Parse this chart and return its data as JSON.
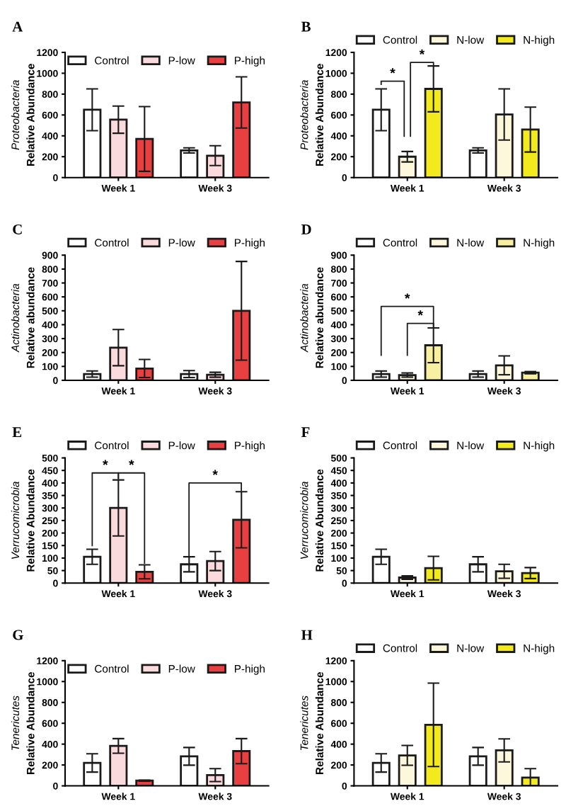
{
  "chart_data": [
    {
      "type": "bar",
      "title": "A",
      "ylabel": "Proteobacteria\nRelative Abundance",
      "categories": [
        "Week 1",
        "Week 3"
      ],
      "ylim": [
        0,
        1200
      ],
      "yticks": [
        0,
        200,
        400,
        600,
        800,
        1000,
        1200
      ],
      "legend": "top",
      "grid": false,
      "series": [
        {
          "name": "Control",
          "color": "#ffffff",
          "values": [
            650,
            260
          ],
          "errors": [
            200,
            25
          ]
        },
        {
          "name": "P-low",
          "color": "#fadadd",
          "values": [
            555,
            210
          ],
          "errors": [
            130,
            95
          ]
        },
        {
          "name": "P-high",
          "color": "#e84040",
          "values": [
            370,
            720
          ],
          "errors": [
            310,
            245
          ]
        }
      ]
    },
    {
      "type": "bar",
      "title": "B",
      "ylabel": "Proteobacteria\nRelative Abundance",
      "categories": [
        "Week 1",
        "Week 3"
      ],
      "ylim": [
        0,
        1200
      ],
      "yticks": [
        0,
        200,
        400,
        600,
        800,
        1000,
        1200
      ],
      "legend": "top",
      "grid": false,
      "annotations": [
        "*",
        "*"
      ],
      "series": [
        {
          "name": "Control",
          "color": "#ffffff",
          "values": [
            650,
            260
          ],
          "errors": [
            200,
            25
          ]
        },
        {
          "name": "N-low",
          "color": "#fdf8dc",
          "values": [
            200,
            605
          ],
          "errors": [
            50,
            245
          ]
        },
        {
          "name": "N-high",
          "color": "#f2ea1c",
          "values": [
            850,
            460
          ],
          "errors": [
            220,
            215
          ]
        }
      ]
    },
    {
      "type": "bar",
      "title": "C",
      "ylabel": "Actinobacteria\nRelative abundance",
      "categories": [
        "Week 1",
        "Week 3"
      ],
      "ylim": [
        0,
        900
      ],
      "yticks": [
        0,
        100,
        200,
        300,
        400,
        500,
        600,
        700,
        800,
        900
      ],
      "legend": "top",
      "grid": false,
      "series": [
        {
          "name": "Control",
          "color": "#ffffff",
          "values": [
            45,
            45
          ],
          "errors": [
            22,
            25
          ]
        },
        {
          "name": "P-low",
          "color": "#fadadd",
          "values": [
            235,
            40
          ],
          "errors": [
            130,
            18
          ]
        },
        {
          "name": "P-high",
          "color": "#e84040",
          "values": [
            85,
            500
          ],
          "errors": [
            65,
            355
          ]
        }
      ]
    },
    {
      "type": "bar",
      "title": "D",
      "ylabel": "Actinobacteria\nRelative abundance",
      "categories": [
        "Week 1",
        "Week 3"
      ],
      "ylim": [
        0,
        900
      ],
      "yticks": [
        0,
        100,
        200,
        300,
        400,
        500,
        600,
        700,
        800,
        900
      ],
      "legend": "top",
      "grid": false,
      "annotations": [
        "*",
        "*"
      ],
      "series": [
        {
          "name": "Control",
          "color": "#ffffff",
          "values": [
            45,
            45
          ],
          "errors": [
            22,
            22
          ]
        },
        {
          "name": "N-low",
          "color": "#fdf8dc",
          "values": [
            38,
            108
          ],
          "errors": [
            15,
            68
          ]
        },
        {
          "name": "N-high",
          "color": "#f7f0a0",
          "values": [
            252,
            55
          ],
          "errors": [
            125,
            8
          ]
        }
      ]
    },
    {
      "type": "bar",
      "title": "E",
      "ylabel": "Verrucomicrobia\nRelative Abundance",
      "categories": [
        "Week 1",
        "Week 3"
      ],
      "ylim": [
        0,
        500
      ],
      "yticks": [
        0,
        50,
        100,
        150,
        200,
        250,
        300,
        350,
        400,
        450,
        500
      ],
      "legend": "top",
      "grid": false,
      "annotations": [
        "*",
        "*",
        "*"
      ],
      "series": [
        {
          "name": "Control",
          "color": "#ffffff",
          "values": [
            105,
            75
          ],
          "errors": [
            30,
            30
          ]
        },
        {
          "name": "P-low",
          "color": "#fadadd",
          "values": [
            300,
            88
          ],
          "errors": [
            112,
            38
          ]
        },
        {
          "name": "P-high",
          "color": "#e84040",
          "values": [
            45,
            253
          ],
          "errors": [
            28,
            112
          ]
        }
      ]
    },
    {
      "type": "bar",
      "title": "F",
      "ylabel": "Verrucomicrobia\nRelative Abundance",
      "categories": [
        "Week 1",
        "Week 3"
      ],
      "ylim": [
        0,
        500
      ],
      "yticks": [
        0,
        50,
        100,
        150,
        200,
        250,
        300,
        350,
        400,
        450,
        500
      ],
      "legend": "top",
      "grid": false,
      "series": [
        {
          "name": "Control",
          "color": "#ffffff",
          "values": [
            105,
            75
          ],
          "errors": [
            30,
            30
          ]
        },
        {
          "name": "N-low",
          "color": "#fdf8dc",
          "values": [
            22,
            47
          ],
          "errors": [
            7,
            28
          ]
        },
        {
          "name": "N-high",
          "color": "#f2ea1c",
          "values": [
            60,
            40
          ],
          "errors": [
            47,
            22
          ]
        }
      ]
    },
    {
      "type": "bar",
      "title": "G",
      "ylabel": "Tenericutes\nRelative Abundance",
      "categories": [
        "Week 1",
        "Week 3"
      ],
      "ylim": [
        0,
        1200
      ],
      "yticks": [
        0,
        200,
        400,
        600,
        800,
        1000,
        1200
      ],
      "legend": "top",
      "grid": false,
      "series": [
        {
          "name": "Control",
          "color": "#ffffff",
          "values": [
            220,
            283
          ],
          "errors": [
            88,
            85
          ]
        },
        {
          "name": "P-low",
          "color": "#fadadd",
          "values": [
            383,
            103
          ],
          "errors": [
            70,
            62
          ]
        },
        {
          "name": "P-high",
          "color": "#e84040",
          "values": [
            50,
            333
          ],
          "errors": [
            5,
            120
          ]
        }
      ]
    },
    {
      "type": "bar",
      "title": "H",
      "ylabel": "Tenericutes\nRelative Abundance",
      "categories": [
        "Week 1",
        "Week 3"
      ],
      "ylim": [
        0,
        1200
      ],
      "yticks": [
        0,
        200,
        400,
        600,
        800,
        1000,
        1200
      ],
      "legend": "top",
      "grid": false,
      "series": [
        {
          "name": "Control",
          "color": "#ffffff",
          "values": [
            220,
            283
          ],
          "errors": [
            88,
            85
          ]
        },
        {
          "name": "N-low",
          "color": "#fdf8dc",
          "values": [
            292,
            340
          ],
          "errors": [
            95,
            110
          ]
        },
        {
          "name": "N-high",
          "color": "#f2ea1c",
          "values": [
            585,
            80
          ],
          "errors": [
            400,
            85
          ]
        }
      ]
    }
  ]
}
